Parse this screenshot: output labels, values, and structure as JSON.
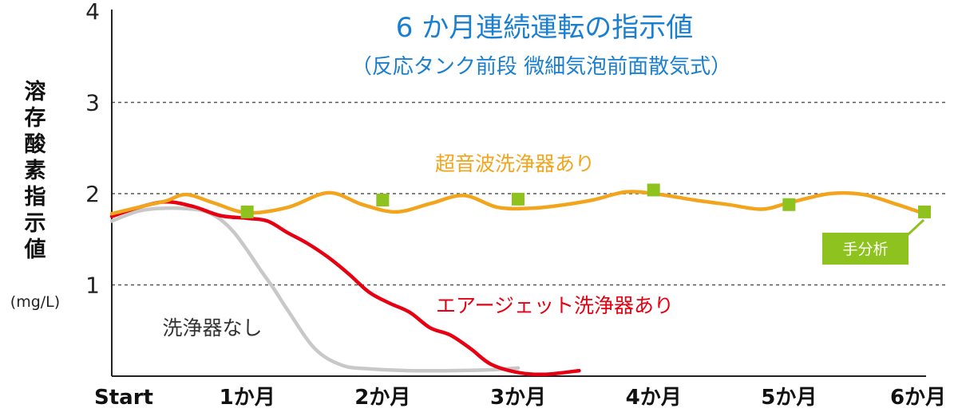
{
  "chart_data": {
    "type": "line",
    "title": "6 か月連続運転の指示値",
    "subtitle": "（反応タンク前段 微細気泡前面散気式）",
    "ylabel_chars": [
      "溶",
      "存",
      "酸",
      "素",
      "指",
      "示",
      "値"
    ],
    "ylabel_unit": "(mg/L)",
    "ylim": [
      0,
      4
    ],
    "yticks": [
      "1",
      "2",
      "3",
      "4"
    ],
    "xticks": [
      "Start",
      "1か月",
      "2か月",
      "3か月",
      "4か月",
      "5か月",
      "6か月"
    ],
    "grid": "dashed horizontal at 1, 2, 3",
    "legend": "inline labels",
    "series": [
      {
        "name": "超音波洗浄器あり",
        "color": "#f2a51c",
        "x": [
          0,
          0.25,
          0.4,
          0.55,
          0.75,
          1.0,
          1.3,
          1.6,
          1.85,
          2.1,
          2.35,
          2.6,
          2.85,
          3.1,
          3.3,
          3.55,
          3.8,
          4.05,
          4.3,
          4.55,
          4.8,
          5.0,
          5.3,
          5.55,
          5.8,
          6.0
        ],
        "y": [
          1.78,
          1.87,
          1.92,
          1.99,
          1.9,
          1.79,
          1.85,
          2.01,
          1.88,
          1.8,
          1.89,
          1.98,
          1.85,
          1.84,
          1.87,
          1.93,
          2.02,
          1.99,
          1.93,
          1.88,
          1.83,
          1.9,
          2.0,
          1.99,
          1.88,
          1.78
        ]
      },
      {
        "name": "エアージェット洗浄器あり",
        "color": "#e60012",
        "x": [
          0,
          0.2,
          0.4,
          0.6,
          0.8,
          1.0,
          1.15,
          1.3,
          1.45,
          1.6,
          1.75,
          1.9,
          2.05,
          2.2,
          2.35,
          2.5,
          2.65,
          2.8,
          3.0,
          3.2,
          3.45
        ],
        "y": [
          1.75,
          1.85,
          1.91,
          1.86,
          1.76,
          1.73,
          1.7,
          1.57,
          1.45,
          1.3,
          1.12,
          0.92,
          0.8,
          0.7,
          0.53,
          0.45,
          0.3,
          0.13,
          0.04,
          0.02,
          0.06
        ]
      },
      {
        "name": "洗浄器なし",
        "color": "#c8c8c8",
        "x": [
          0,
          0.2,
          0.4,
          0.6,
          0.7,
          0.8,
          0.9,
          1.0,
          1.1,
          1.2,
          1.3,
          1.5,
          1.7,
          1.9,
          2.2,
          2.5,
          2.8,
          3.0
        ],
        "y": [
          1.7,
          1.81,
          1.84,
          1.83,
          1.8,
          1.72,
          1.58,
          1.38,
          1.16,
          0.95,
          0.72,
          0.3,
          0.12,
          0.08,
          0.06,
          0.06,
          0.07,
          0.09
        ]
      }
    ],
    "markers": {
      "series": "超音波洗浄器あり",
      "color": "#8dc21f",
      "x": [
        1,
        2,
        3,
        4,
        5,
        6
      ],
      "y": [
        1.8,
        1.93,
        1.94,
        2.04,
        1.88,
        1.8
      ]
    },
    "annotation": "手分析"
  }
}
